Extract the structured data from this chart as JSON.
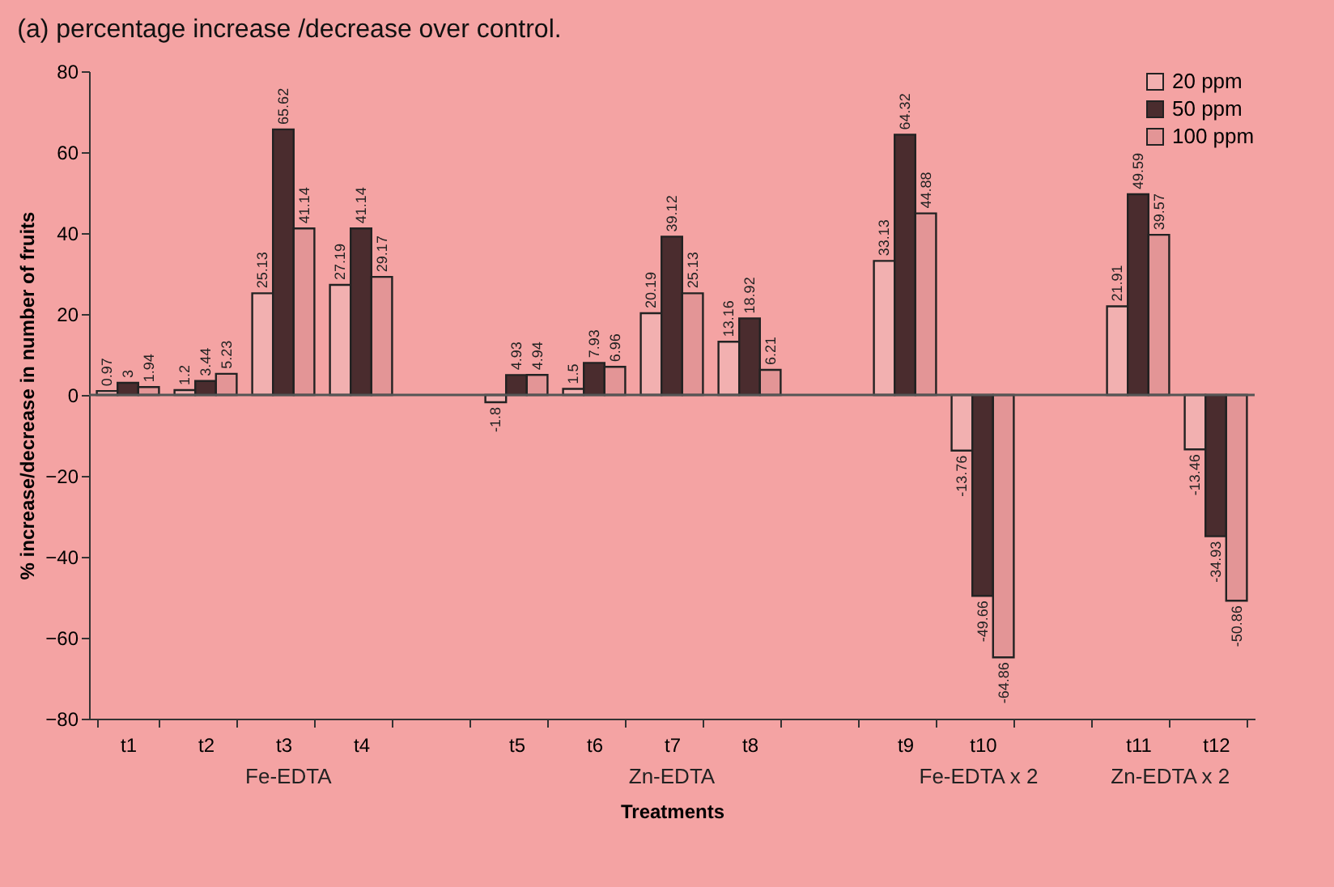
{
  "chart_data": {
    "type": "bar",
    "title": "(a) percentage increase /decrease over control.",
    "xlabel": "Treatments",
    "ylabel": "% increase/decrease in number of fruits",
    "categories": [
      "t1",
      "t2",
      "t3",
      "t4",
      null,
      "t5",
      "t6",
      "t7",
      "t8",
      null,
      "t9",
      "t10",
      null,
      "t11",
      "t12"
    ],
    "series": [
      {
        "name": "20 ppm",
        "color": "#f2b0b0",
        "values": [
          0.97,
          1.2,
          25.13,
          27.19,
          null,
          -1.8,
          1.5,
          20.19,
          13.16,
          null,
          33.13,
          -13.76,
          null,
          21.91,
          -13.46
        ]
      },
      {
        "name": "50 ppm",
        "color": "#4a2c2e",
        "values": [
          3,
          3.44,
          65.62,
          41.14,
          null,
          4.93,
          7.93,
          39.12,
          18.92,
          null,
          64.32,
          -49.66,
          null,
          49.59,
          -34.93
        ]
      },
      {
        "name": "100 ppm",
        "color": "#e39596",
        "values": [
          1.94,
          5.23,
          41.14,
          29.17,
          null,
          4.94,
          6.96,
          25.13,
          6.21,
          null,
          44.88,
          -64.86,
          null,
          39.57,
          -50.86
        ]
      }
    ],
    "ylim": [
      -80,
      80
    ],
    "yticks": [
      -80,
      -60,
      -40,
      -20,
      0,
      20,
      40,
      60,
      80
    ],
    "data_labels": true,
    "legend": "top right",
    "grid": false,
    "ref_lines": [
      {
        "axis": "y",
        "value": 0
      }
    ],
    "annotations": [
      "Fe-EDTA",
      "Zn-EDTA",
      "Fe-EDTA x 2",
      "Zn-EDTA x 2"
    ]
  }
}
